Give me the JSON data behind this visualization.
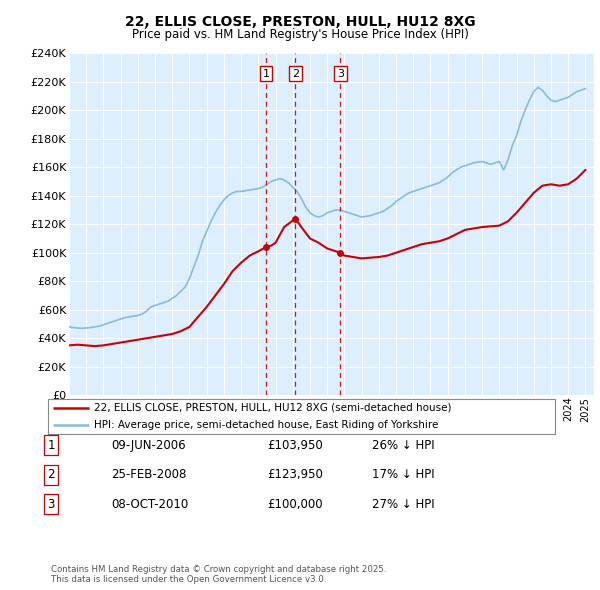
{
  "title": "22, ELLIS CLOSE, PRESTON, HULL, HU12 8XG",
  "subtitle": "Price paid vs. HM Land Registry's House Price Index (HPI)",
  "legend_line1": "22, ELLIS CLOSE, PRESTON, HULL, HU12 8XG (semi-detached house)",
  "legend_line2": "HPI: Average price, semi-detached house, East Riding of Yorkshire",
  "price_paid_color": "#cc0000",
  "hpi_color": "#88bbdd",
  "transaction_color": "#cc0000",
  "chart_bg": "#ddeeff",
  "ylim": [
    0,
    240000
  ],
  "ytick_step": 20000,
  "xlim_left": 1995,
  "xlim_right": 2025.5,
  "footer": "Contains HM Land Registry data © Crown copyright and database right 2025.\nThis data is licensed under the Open Government Licence v3.0.",
  "transactions": [
    {
      "num": 1,
      "date": "09-JUN-2006",
      "date_x": 2006.44,
      "price": 103950,
      "pct": "26%",
      "dir": "↓"
    },
    {
      "num": 2,
      "date": "25-FEB-2008",
      "date_x": 2008.15,
      "price": 123950,
      "pct": "17%",
      "dir": "↓"
    },
    {
      "num": 3,
      "date": "08-OCT-2010",
      "date_x": 2010.77,
      "price": 100000,
      "pct": "27%",
      "dir": "↓"
    }
  ],
  "hpi_data": {
    "years": [
      1995.0,
      1995.25,
      1995.5,
      1995.75,
      1996.0,
      1996.25,
      1996.5,
      1996.75,
      1997.0,
      1997.25,
      1997.5,
      1997.75,
      1998.0,
      1998.25,
      1998.5,
      1998.75,
      1999.0,
      1999.25,
      1999.5,
      1999.75,
      2000.0,
      2000.25,
      2000.5,
      2000.75,
      2001.0,
      2001.25,
      2001.5,
      2001.75,
      2002.0,
      2002.25,
      2002.5,
      2002.75,
      2003.0,
      2003.25,
      2003.5,
      2003.75,
      2004.0,
      2004.25,
      2004.5,
      2004.75,
      2005.0,
      2005.25,
      2005.5,
      2005.75,
      2006.0,
      2006.25,
      2006.5,
      2006.75,
      2007.0,
      2007.25,
      2007.5,
      2007.75,
      2008.0,
      2008.25,
      2008.5,
      2008.75,
      2009.0,
      2009.25,
      2009.5,
      2009.75,
      2010.0,
      2010.25,
      2010.5,
      2010.75,
      2011.0,
      2011.25,
      2011.5,
      2011.75,
      2012.0,
      2012.25,
      2012.5,
      2012.75,
      2013.0,
      2013.25,
      2013.5,
      2013.75,
      2014.0,
      2014.25,
      2014.5,
      2014.75,
      2015.0,
      2015.25,
      2015.5,
      2015.75,
      2016.0,
      2016.25,
      2016.5,
      2016.75,
      2017.0,
      2017.25,
      2017.5,
      2017.75,
      2018.0,
      2018.25,
      2018.5,
      2018.75,
      2019.0,
      2019.25,
      2019.5,
      2019.75,
      2020.0,
      2020.25,
      2020.5,
      2020.75,
      2021.0,
      2021.25,
      2021.5,
      2021.75,
      2022.0,
      2022.25,
      2022.5,
      2022.75,
      2023.0,
      2023.25,
      2023.5,
      2023.75,
      2024.0,
      2024.25,
      2024.5,
      2024.75,
      2025.0
    ],
    "values": [
      48000,
      47500,
      47200,
      47000,
      47200,
      47500,
      48000,
      48500,
      49500,
      50500,
      51500,
      52500,
      53500,
      54500,
      55000,
      55500,
      56000,
      57000,
      59000,
      62000,
      63000,
      64000,
      65000,
      66000,
      68000,
      70000,
      73000,
      76000,
      82000,
      90000,
      98000,
      108000,
      115000,
      122000,
      128000,
      133000,
      137000,
      140000,
      142000,
      143000,
      143000,
      143500,
      144000,
      144500,
      145000,
      146000,
      148000,
      150000,
      151000,
      152000,
      151000,
      149000,
      146000,
      143000,
      138000,
      132000,
      128000,
      126000,
      125000,
      126000,
      128000,
      129000,
      130000,
      130000,
      129000,
      128000,
      127000,
      126000,
      125000,
      125500,
      126000,
      127000,
      128000,
      129000,
      131000,
      133000,
      136000,
      138000,
      140000,
      142000,
      143000,
      144000,
      145000,
      146000,
      147000,
      148000,
      149000,
      151000,
      153000,
      156000,
      158000,
      160000,
      161000,
      162000,
      163000,
      163500,
      164000,
      163000,
      162000,
      163000,
      164000,
      158000,
      165000,
      175000,
      182000,
      192000,
      200000,
      207000,
      213000,
      216000,
      214000,
      210000,
      207000,
      206000,
      207000,
      208000,
      209000,
      211000,
      213000,
      214000,
      215000
    ]
  },
  "price_paid_data": {
    "years": [
      1995.0,
      1995.5,
      1996.0,
      1996.5,
      1997.0,
      1997.5,
      1998.0,
      1998.5,
      1999.0,
      1999.5,
      2000.0,
      2000.5,
      2001.0,
      2001.5,
      2002.0,
      2002.5,
      2003.0,
      2003.5,
      2004.0,
      2004.5,
      2005.0,
      2005.5,
      2006.0,
      2006.44,
      2006.75,
      2007.0,
      2007.5,
      2008.15,
      2008.5,
      2009.0,
      2009.5,
      2010.0,
      2010.5,
      2010.77,
      2011.0,
      2011.5,
      2012.0,
      2012.5,
      2013.0,
      2013.5,
      2014.0,
      2014.5,
      2015.0,
      2015.5,
      2016.0,
      2016.5,
      2017.0,
      2017.5,
      2018.0,
      2018.5,
      2019.0,
      2019.5,
      2020.0,
      2020.5,
      2021.0,
      2021.5,
      2022.0,
      2022.5,
      2023.0,
      2023.5,
      2024.0,
      2024.5,
      2025.0
    ],
    "values": [
      35000,
      35500,
      35000,
      34500,
      35000,
      36000,
      37000,
      38000,
      39000,
      40000,
      41000,
      42000,
      43000,
      45000,
      48000,
      55000,
      62000,
      70000,
      78000,
      87000,
      93000,
      98000,
      101000,
      103950,
      105000,
      107000,
      118000,
      123950,
      118000,
      110000,
      107000,
      103000,
      101000,
      100000,
      98000,
      97000,
      96000,
      96500,
      97000,
      98000,
      100000,
      102000,
      104000,
      106000,
      107000,
      108000,
      110000,
      113000,
      116000,
      117000,
      118000,
      118500,
      119000,
      122000,
      128000,
      135000,
      142000,
      147000,
      148000,
      147000,
      148000,
      152000,
      158000
    ]
  }
}
